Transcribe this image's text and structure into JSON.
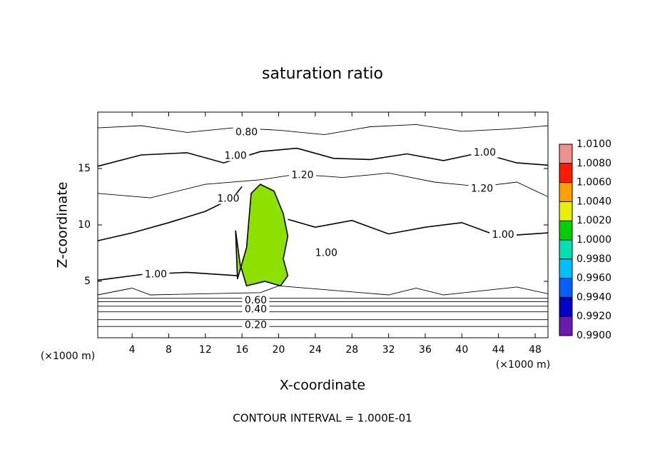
{
  "chart_data": {
    "type": "contour",
    "title": "saturation ratio",
    "xlabel": "X-coordinate",
    "ylabel": "Z-coordinate",
    "xunit": "(×1000 m)",
    "footer": "CONTOUR INTERVAL = 1.000E-01",
    "xlim": [
      0.25,
      49.4
    ],
    "ylim": [
      0,
      20
    ],
    "xticks": [
      4,
      8,
      12,
      16,
      20,
      24,
      28,
      32,
      36,
      40,
      44,
      48
    ],
    "yticks": [
      5,
      10,
      15
    ],
    "contours": [
      {
        "level": 0.2,
        "x": [
          0.25,
          49.4
        ],
        "y": [
          1.0,
          1.0
        ]
      },
      {
        "level": 0.3,
        "x": [
          0.25,
          49.4
        ],
        "y": [
          1.6,
          1.6
        ]
      },
      {
        "level": 0.4,
        "x": [
          0.25,
          49.4
        ],
        "y": [
          2.3,
          2.3
        ]
      },
      {
        "level": 0.5,
        "x": [
          0.25,
          49.4
        ],
        "y": [
          2.8,
          2.8
        ]
      },
      {
        "level": 0.6,
        "x": [
          0.25,
          49.4
        ],
        "y": [
          3.2,
          3.2
        ]
      },
      {
        "level": 0.7,
        "x": [
          0.25,
          49.4
        ],
        "y": [
          3.5,
          3.5
        ]
      },
      {
        "level": 0.8,
        "x": [
          0.25,
          4,
          6,
          18,
          20,
          32,
          35,
          38,
          46,
          49.4
        ],
        "y": [
          3.8,
          4.4,
          3.8,
          4.0,
          4.6,
          3.8,
          4.4,
          3.8,
          4.5,
          3.9
        ]
      },
      {
        "level": 0.8,
        "x": [
          0.25,
          5,
          10,
          15,
          20,
          25,
          30,
          35,
          40,
          45,
          49.4
        ],
        "y": [
          18.6,
          18.8,
          18.2,
          18.6,
          18.4,
          18.0,
          18.7,
          18.9,
          18.3,
          18.5,
          18.8
        ]
      },
      {
        "level": 1.0,
        "x": [
          0.25,
          5,
          10,
          14,
          18,
          22,
          26,
          30,
          34,
          38,
          42,
          46,
          49.4
        ],
        "y": [
          15.2,
          16.2,
          16.4,
          15.5,
          16.5,
          16.8,
          15.9,
          15.8,
          16.3,
          15.7,
          16.4,
          15.5,
          15.3
        ]
      },
      {
        "level": 1.2,
        "x": [
          0.25,
          6,
          12,
          18,
          22,
          27,
          32,
          37,
          42,
          46,
          49.4
        ],
        "y": [
          12.8,
          12.4,
          13.6,
          14.0,
          14.5,
          14.2,
          14.6,
          13.8,
          13.4,
          13.8,
          12.5
        ]
      },
      {
        "level": 1.0,
        "x": [
          0.25,
          4,
          8,
          12,
          15,
          16
        ],
        "y": [
          8.6,
          9.3,
          10.2,
          11.2,
          12.4,
          13.4
        ]
      },
      {
        "level": 1.0,
        "x": [
          21,
          24,
          28,
          32,
          36,
          40,
          44,
          49.4
        ],
        "y": [
          10.5,
          9.8,
          10.4,
          9.2,
          9.8,
          10.2,
          9.0,
          9.3
        ]
      },
      {
        "level": 1.0,
        "x": [
          0.25,
          5,
          10,
          15.5
        ],
        "y": [
          5.1,
          5.6,
          5.8,
          5.5
        ]
      },
      {
        "level": 1.0,
        "x": [
          15.5,
          16.5,
          17,
          18,
          19.5,
          20.5,
          21,
          20.5,
          21,
          20.2,
          18.5,
          16.5,
          15.8,
          15.3,
          15.5
        ],
        "y": [
          5.2,
          8.0,
          12.8,
          13.6,
          13.0,
          11.0,
          9.0,
          7.0,
          5.5,
          4.6,
          5.0,
          4.6,
          6.5,
          9.5,
          5.2
        ],
        "fill": "#8ee000"
      }
    ],
    "contour_labels": [
      {
        "value": 0.8,
        "label": "0.80",
        "x": 16.5,
        "y": 18.2
      },
      {
        "value": 1.0,
        "label": "1.00",
        "x": 15.3,
        "y": 16.1
      },
      {
        "value": 1.0,
        "label": "1.00",
        "x": 42.5,
        "y": 16.4
      },
      {
        "value": 1.2,
        "label": "1.20",
        "x": 22.6,
        "y": 14.4
      },
      {
        "value": 1.2,
        "label": "1.20",
        "x": 42.2,
        "y": 13.2
      },
      {
        "value": 1.0,
        "label": "1.00",
        "x": 14.5,
        "y": 12.3
      },
      {
        "value": 1.0,
        "label": "1.00",
        "x": 44.5,
        "y": 9.1
      },
      {
        "value": 1.0,
        "label": "1.00",
        "x": 25.2,
        "y": 7.5
      },
      {
        "value": 1.0,
        "label": "1.00",
        "x": 6.6,
        "y": 5.6
      },
      {
        "value": 0.6,
        "label": "0.60",
        "x": 17.5,
        "y": 3.3
      },
      {
        "value": 0.4,
        "label": "0.40",
        "x": 17.5,
        "y": 2.5
      },
      {
        "value": 0.2,
        "label": "0.20",
        "x": 17.5,
        "y": 1.1
      }
    ],
    "colorbar": {
      "ticks": [
        {
          "value": 0.99,
          "label": "0.9900"
        },
        {
          "value": 0.992,
          "label": "0.9920"
        },
        {
          "value": 0.994,
          "label": "0.9940"
        },
        {
          "value": 0.996,
          "label": "0.9960"
        },
        {
          "value": 0.998,
          "label": "0.9980"
        },
        {
          "value": 1.0,
          "label": "1.0000"
        },
        {
          "value": 1.002,
          "label": "1.0020"
        },
        {
          "value": 1.004,
          "label": "1.0040"
        },
        {
          "value": 1.006,
          "label": "1.0060"
        },
        {
          "value": 1.008,
          "label": "1.0080"
        },
        {
          "value": 1.01,
          "label": "1.0100"
        }
      ],
      "colors": [
        "#6a1ab0",
        "#0000c8",
        "#0060ff",
        "#00c0ff",
        "#00e0b0",
        "#00d000",
        "#e8f000",
        "#ffa000",
        "#ff1a00",
        "#f09090"
      ]
    }
  }
}
